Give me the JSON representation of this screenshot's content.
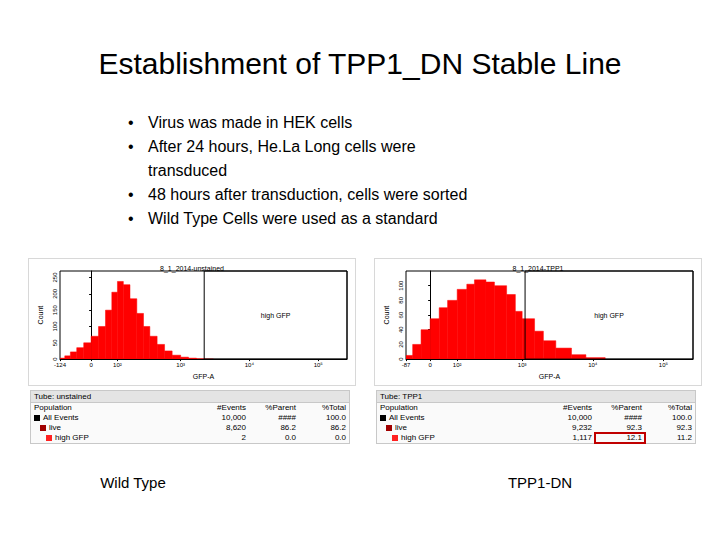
{
  "slide": {
    "title": "Establishment of TPP1_DN Stable Line",
    "bullets": [
      [
        "Virus was made in HEK cells"
      ],
      [
        "After 24 hours, He.La Long cells were",
        "transduced"
      ],
      [
        "48 hours after transduction, cells were sorted"
      ],
      [
        "Wild Type Cells were used as a standard"
      ]
    ]
  },
  "chart_data": [
    {
      "type": "histogram",
      "title": "8_1_2014-unstained",
      "x_label": "GFP-A",
      "y_label": "Count",
      "color": "#ff0000",
      "bins": [
        -124,
        -100,
        -75,
        -50,
        -25,
        0,
        25,
        50,
        75,
        100,
        130,
        170,
        220,
        280,
        350,
        450,
        580,
        750,
        1000,
        1300,
        1700,
        2200,
        3000
      ],
      "counts": [
        3,
        10,
        22,
        35,
        50,
        70,
        100,
        150,
        205,
        238,
        228,
        185,
        140,
        100,
        70,
        45,
        25,
        12,
        6,
        3,
        1,
        0
      ],
      "xlim": [
        -124,
        262144
      ],
      "xticks": [
        -124,
        0,
        {
          "value": 100,
          "label": "10²"
        },
        {
          "value": 1000,
          "label": "10³"
        },
        {
          "value": 10000,
          "label": "10⁴"
        },
        {
          "value": 100000,
          "label": "10⁵"
        }
      ],
      "ylim": [
        0,
        270
      ],
      "yticks": [
        0,
        50,
        100,
        150,
        200,
        250
      ],
      "gate": {
        "label": "high GFP",
        "x": [
          2200,
          262144
        ]
      }
    },
    {
      "type": "histogram",
      "title": "8_1_2014-TPP1",
      "x_label": "GFP-A",
      "y_label": "Count",
      "color": "#ff0000",
      "bins": [
        -87,
        -60,
        -30,
        0,
        30,
        60,
        100,
        150,
        200,
        300,
        400,
        600,
        800,
        1000,
        1500,
        2000,
        3000,
        5000,
        8000,
        15000
      ],
      "counts": [
        5,
        20,
        40,
        55,
        70,
        80,
        95,
        102,
        108,
        105,
        100,
        88,
        65,
        55,
        38,
        25,
        15,
        6,
        2
      ],
      "xlim": [
        -87,
        262144
      ],
      "xticks": [
        -87,
        0,
        {
          "value": 100,
          "label": "10²"
        },
        {
          "value": 1000,
          "label": "10³"
        },
        {
          "value": 10000,
          "label": "10⁴"
        },
        {
          "value": 100000,
          "label": "10⁵"
        }
      ],
      "ylim": [
        0,
        120
      ],
      "yticks": [
        0,
        20,
        40,
        60,
        80,
        100
      ],
      "gate": {
        "label": "high GFP",
        "x": [
          1100,
          262144
        ]
      }
    }
  ],
  "panels": [
    {
      "caption": "Wild Type",
      "table": {
        "tube": "Tube: unstained",
        "header": [
          "Population",
          "#Events",
          "%Parent",
          "%Total"
        ],
        "rows": [
          [
            "All Events",
            "10,000",
            "####",
            "100.0"
          ],
          [
            "live",
            "8,620",
            "86.2",
            "86.2"
          ],
          [
            "high GFP",
            "2",
            "0.0",
            "0.0"
          ]
        ]
      }
    },
    {
      "caption": "TPP1-DN",
      "table": {
        "tube": "Tube: TPP1",
        "header": [
          "Population",
          "#Events",
          "%Parent",
          "%Total"
        ],
        "rows": [
          [
            "All Events",
            "10,000",
            "####",
            "100.0"
          ],
          [
            "live",
            "9,232",
            "92.3",
            "92.3"
          ],
          [
            "high GFP",
            "1,117",
            "12.1",
            "11.2"
          ]
        ],
        "highlight": {
          "row": 2,
          "col": 2
        }
      }
    }
  ]
}
